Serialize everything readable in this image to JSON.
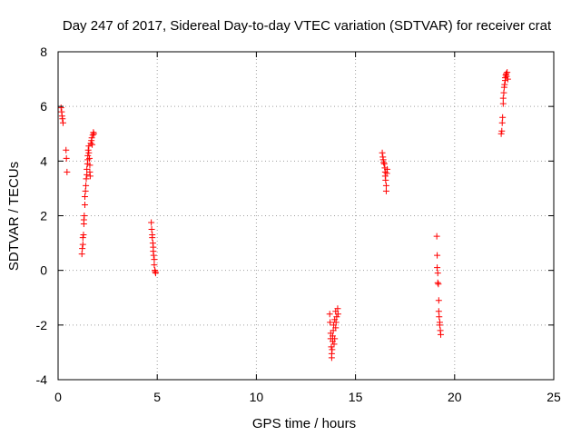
{
  "chart_data": {
    "type": "scatter",
    "title": "Day 247 of 2017, Sidereal Day-to-day VTEC variation (SDTVAR) for receiver crat",
    "xlabel": "GPS time / hours",
    "ylabel": "SDTVAR / TECUs",
    "xlim": [
      0,
      25
    ],
    "ylim": [
      -4,
      8
    ],
    "xticks": [
      0,
      5,
      10,
      15,
      20,
      25
    ],
    "yticks": [
      -4,
      -2,
      0,
      2,
      4,
      6,
      8
    ],
    "grid": true,
    "marker": "+",
    "color": "#ff0000",
    "series": [
      {
        "name": "SDTVAR",
        "points": [
          [
            0.15,
            5.95
          ],
          [
            0.18,
            5.8
          ],
          [
            0.2,
            5.65
          ],
          [
            0.22,
            5.55
          ],
          [
            0.25,
            5.4
          ],
          [
            0.4,
            4.4
          ],
          [
            0.42,
            4.1
          ],
          [
            0.45,
            3.6
          ],
          [
            1.2,
            0.6
          ],
          [
            1.22,
            0.8
          ],
          [
            1.25,
            0.95
          ],
          [
            1.25,
            1.2
          ],
          [
            1.28,
            1.3
          ],
          [
            1.3,
            1.7
          ],
          [
            1.3,
            1.85
          ],
          [
            1.32,
            2.0
          ],
          [
            1.35,
            2.4
          ],
          [
            1.35,
            2.7
          ],
          [
            1.38,
            2.9
          ],
          [
            1.4,
            3.1
          ],
          [
            1.42,
            3.35
          ],
          [
            1.45,
            3.5
          ],
          [
            1.45,
            3.7
          ],
          [
            1.48,
            3.9
          ],
          [
            1.5,
            4.05
          ],
          [
            1.5,
            4.2
          ],
          [
            1.52,
            4.4
          ],
          [
            1.55,
            4.55
          ],
          [
            1.55,
            4.3
          ],
          [
            1.58,
            4.1
          ],
          [
            1.6,
            3.85
          ],
          [
            1.6,
            3.6
          ],
          [
            1.62,
            3.45
          ],
          [
            1.65,
            4.65
          ],
          [
            1.68,
            4.75
          ],
          [
            1.7,
            4.85
          ],
          [
            1.72,
            4.6
          ],
          [
            1.75,
            4.95
          ],
          [
            1.78,
            5.05
          ],
          [
            1.8,
            5.0
          ],
          [
            4.7,
            1.75
          ],
          [
            4.72,
            1.5
          ],
          [
            4.75,
            1.3
          ],
          [
            4.75,
            1.2
          ],
          [
            4.78,
            1.0
          ],
          [
            4.8,
            0.85
          ],
          [
            4.8,
            0.7
          ],
          [
            4.82,
            0.55
          ],
          [
            4.85,
            0.4
          ],
          [
            4.85,
            0.2
          ],
          [
            4.88,
            0.0
          ],
          [
            4.9,
            -0.05
          ],
          [
            4.92,
            -0.1
          ],
          [
            13.7,
            -1.6
          ],
          [
            13.72,
            -1.9
          ],
          [
            13.75,
            -2.3
          ],
          [
            13.75,
            -2.5
          ],
          [
            13.78,
            -2.8
          ],
          [
            13.8,
            -3.05
          ],
          [
            13.8,
            -3.2
          ],
          [
            13.82,
            -2.9
          ],
          [
            13.85,
            -2.6
          ],
          [
            13.85,
            -2.4
          ],
          [
            13.88,
            -2.2
          ],
          [
            13.9,
            -2.0
          ],
          [
            13.92,
            -2.7
          ],
          [
            13.95,
            -2.5
          ],
          [
            13.95,
            -1.8
          ],
          [
            14.0,
            -2.1
          ],
          [
            14.0,
            -1.5
          ],
          [
            14.02,
            -1.9
          ],
          [
            14.05,
            -1.7
          ],
          [
            14.1,
            -1.4
          ],
          [
            14.12,
            -1.6
          ],
          [
            16.35,
            4.3
          ],
          [
            16.38,
            4.15
          ],
          [
            16.4,
            4.05
          ],
          [
            16.42,
            3.95
          ],
          [
            16.45,
            3.9
          ],
          [
            16.48,
            3.75
          ],
          [
            16.5,
            3.6
          ],
          [
            16.5,
            3.45
          ],
          [
            16.52,
            3.3
          ],
          [
            16.55,
            3.1
          ],
          [
            16.55,
            2.9
          ],
          [
            16.58,
            3.55
          ],
          [
            16.6,
            3.7
          ],
          [
            19.1,
            1.25
          ],
          [
            19.12,
            0.55
          ],
          [
            19.12,
            0.1
          ],
          [
            19.15,
            -0.1
          ],
          [
            19.15,
            -0.45
          ],
          [
            19.18,
            -0.5
          ],
          [
            19.2,
            -1.1
          ],
          [
            19.2,
            -1.5
          ],
          [
            19.22,
            -1.7
          ],
          [
            19.25,
            -1.9
          ],
          [
            19.25,
            -2.0
          ],
          [
            19.28,
            -2.2
          ],
          [
            19.3,
            -2.35
          ],
          [
            22.35,
            5.0
          ],
          [
            22.38,
            5.1
          ],
          [
            22.4,
            5.4
          ],
          [
            22.42,
            5.6
          ],
          [
            22.45,
            6.1
          ],
          [
            22.45,
            6.3
          ],
          [
            22.48,
            6.5
          ],
          [
            22.5,
            6.7
          ],
          [
            22.52,
            6.8
          ],
          [
            22.55,
            6.95
          ],
          [
            22.55,
            7.05
          ],
          [
            22.58,
            7.15
          ],
          [
            22.6,
            7.2
          ],
          [
            22.62,
            7.1
          ],
          [
            22.65,
            7.25
          ],
          [
            22.68,
            7.0
          ]
        ]
      }
    ]
  }
}
